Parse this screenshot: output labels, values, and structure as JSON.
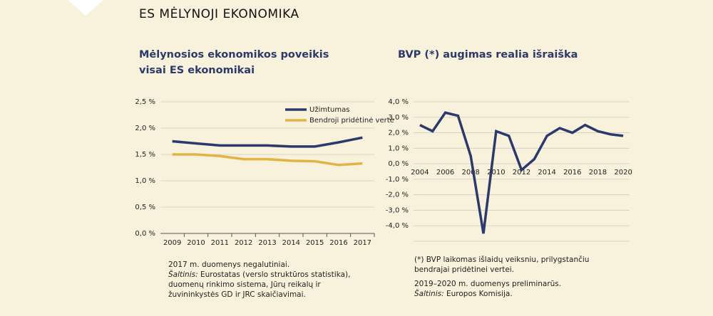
{
  "header": {
    "title": "ES MĖLYNOJI EKONOMIKA"
  },
  "chart_data": [
    {
      "type": "line",
      "title": "Mėlynosios ekonomikos poveikis visai ES ekonomikai",
      "categories": [
        "2009",
        "2010",
        "2011",
        "2012",
        "2013",
        "2014",
        "2015",
        "2016",
        "2017"
      ],
      "series": [
        {
          "name": "Užimtumas",
          "color": "#2b3a6b",
          "values": [
            1.75,
            1.71,
            1.67,
            1.67,
            1.67,
            1.65,
            1.65,
            1.73,
            1.82
          ]
        },
        {
          "name": "Bendroji pridėtinė vertė",
          "color": "#e1b444",
          "values": [
            1.5,
            1.5,
            1.47,
            1.41,
            1.41,
            1.38,
            1.37,
            1.3,
            1.33
          ]
        }
      ],
      "ylim": [
        0,
        2.5
      ],
      "yticks": [
        {
          "value": 0,
          "label": "0,0 %"
        },
        {
          "value": 0.5,
          "label": "0,5 %"
        },
        {
          "value": 1,
          "label": "1,0 %"
        },
        {
          "value": 1.5,
          "label": "1,5 %"
        },
        {
          "value": 2,
          "label": "2,0 %"
        },
        {
          "value": 2.5,
          "label": "2,5 %"
        }
      ],
      "grid": true,
      "legend": "upper-right"
    },
    {
      "type": "line",
      "title": "BVP (*) augimas realia išraiška",
      "x": [
        2004,
        2005,
        2006,
        2007,
        2008,
        2009,
        2010,
        2011,
        2012,
        2013,
        2014,
        2015,
        2016,
        2017,
        2018,
        2019,
        2020
      ],
      "series": [
        {
          "color": "#2b3a6b",
          "values": [
            2.5,
            2.1,
            3.3,
            3.1,
            0.5,
            -4.5,
            2.1,
            1.8,
            -0.4,
            0.3,
            1.8,
            2.3,
            2.0,
            2.5,
            2.1,
            1.9,
            1.8
          ]
        }
      ],
      "xlim": [
        2003.5,
        2020.5
      ],
      "xticks": [
        2004,
        2006,
        2008,
        2010,
        2012,
        2014,
        2016,
        2018,
        2020
      ],
      "ylim": [
        -5,
        4
      ],
      "yticks": [
        {
          "value": 4,
          "label": "4,0 %"
        },
        {
          "value": 3,
          "label": "3,0 %"
        },
        {
          "value": 2,
          "label": "2,0 %"
        },
        {
          "value": 1,
          "label": "1,0 %"
        },
        {
          "value": 0,
          "label": "0,0 %"
        },
        {
          "value": -1,
          "label": "-1,0 %"
        },
        {
          "value": -2,
          "label": "-2,0 %"
        },
        {
          "value": -3,
          "label": "-3,0 %"
        },
        {
          "value": -4,
          "label": "-4,0 %"
        }
      ],
      "grid": true
    }
  ],
  "notes_left": {
    "note": "2017 m. duomenys negalutiniai.",
    "source_label": "Šaltinis:",
    "source": "Eurostatas (verslo struktūros statistika), duomenų rinkimo sistema, Jūrų reikalų ir žuvininkystės GD ir JRC skaičiavimai."
  },
  "notes_right": {
    "note": "(*) BVP laikomas išlaidų veiksniu, prilygstančiu bendrajai pridėtinei vertei.",
    "note2": "2019–2020 m. duomenys preliminarūs.",
    "source_label": "Šaltinis:",
    "source": "Europos Komisija."
  }
}
